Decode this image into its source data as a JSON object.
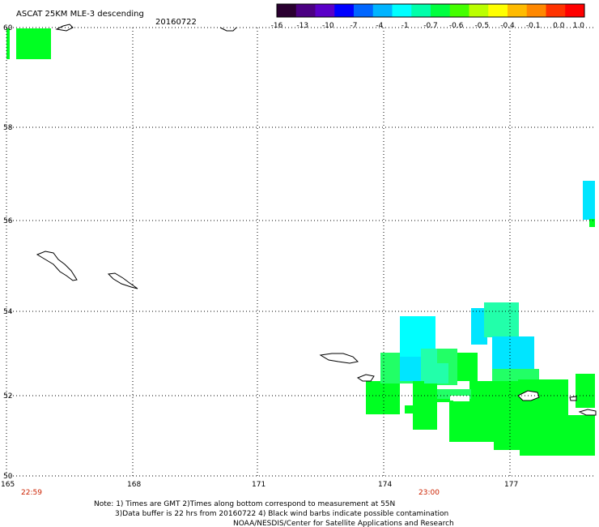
{
  "map": {
    "title": "ASCAT 25KM MLE-3 descending",
    "date": "20160722",
    "lat_labels": [
      "60",
      "58",
      "56",
      "54",
      "52",
      "50"
    ],
    "lon_labels": [
      "165",
      "168",
      "171",
      "174",
      "177"
    ],
    "time_labels": [
      "22:59",
      "23:00"
    ]
  },
  "colorbar": {
    "labels": [
      "-16",
      "-13",
      "-10",
      "-7",
      "-4",
      "-1",
      "-0.7",
      "-0.6",
      "-0.5",
      "-0.4",
      "-0.1",
      "0.0",
      "1.0"
    ],
    "colors": [
      "#2a0030",
      "#4b0082",
      "#5a00c8",
      "#0000ff",
      "#0066ff",
      "#00b4ff",
      "#00ffff",
      "#00ffaa",
      "#00ff40",
      "#44ff00",
      "#bbff00",
      "#ffff00",
      "#ffbb00",
      "#ff8800",
      "#ff3300",
      "#ff0000"
    ]
  },
  "swath_colors": {
    "green": "#00ff22",
    "spring": "#22ff66",
    "aqua": "#22ffaa",
    "cyan": "#00ffff",
    "lightcyan": "#00e5ff"
  },
  "notes": {
    "line1": "Note: 1) Times are GMT 2)Times along bottom correspond to measurement at 55N",
    "line2": "3)Data buffer is 22 hrs from 20160722 4) Black wind barbs indicate possible contamination",
    "line3": "NOAA/NESDIS/Center for Satellite Applications and Research"
  }
}
